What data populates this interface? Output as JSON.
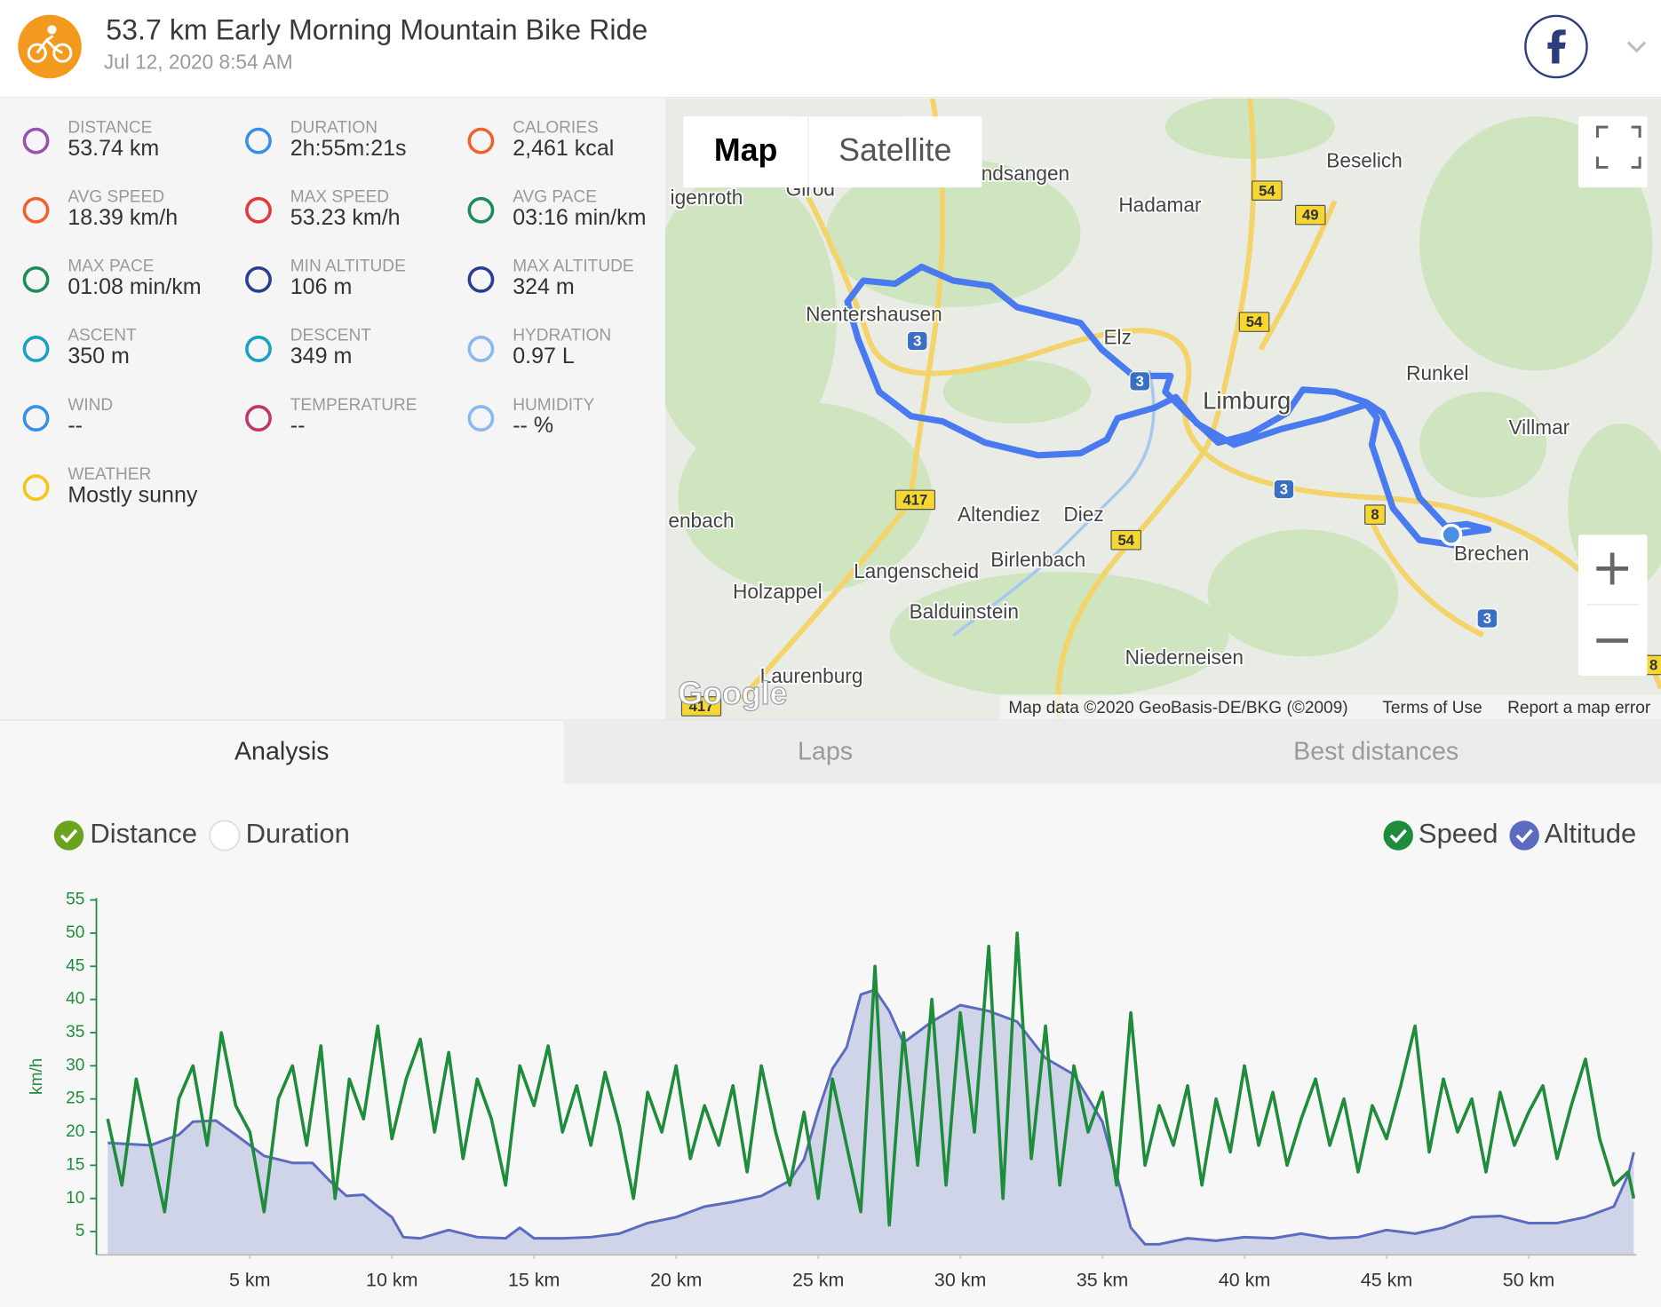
{
  "header": {
    "title": "53.7 km Early Morning Mountain Bike Ride",
    "date": "Jul 12, 2020 8:54 AM"
  },
  "stats": [
    {
      "label": "DISTANCE",
      "value": "53.74 km"
    },
    {
      "label": "DURATION",
      "value": "2h:55m:21s"
    },
    {
      "label": "CALORIES",
      "value": "2,461 kcal"
    },
    {
      "label": "AVG SPEED",
      "value": "18.39 km/h"
    },
    {
      "label": "MAX SPEED",
      "value": "53.23 km/h"
    },
    {
      "label": "AVG PACE",
      "value": "03:16 min/km"
    },
    {
      "label": "MAX PACE",
      "value": "01:08 min/km"
    },
    {
      "label": "MIN ALTITUDE",
      "value": "106 m"
    },
    {
      "label": "MAX ALTITUDE",
      "value": "324 m"
    },
    {
      "label": "ASCENT",
      "value": "350 m"
    },
    {
      "label": "DESCENT",
      "value": "349 m"
    },
    {
      "label": "HYDRATION",
      "value": "0.97 L"
    },
    {
      "label": "WIND",
      "value": "--"
    },
    {
      "label": "TEMPERATURE",
      "value": "--"
    },
    {
      "label": "HUMIDITY",
      "value": "-- %"
    },
    {
      "label": "WEATHER",
      "value": "Mostly sunny"
    }
  ],
  "map": {
    "buttons": [
      "Map",
      "Satellite"
    ],
    "places": [
      "Beselich",
      "Hadamar",
      "ndsangen",
      "Girod",
      "igenroth",
      "Nentershausen",
      "Elz",
      "Limburg",
      "Runkel",
      "Villmar",
      "Brechen",
      "Altendiez",
      "Diez",
      "Birlenbach",
      "Langenscheid",
      "Balduinstein",
      "enbach",
      "Holzappel",
      "Niederneisen",
      "Laurenburg"
    ],
    "roads": [
      "3",
      "3",
      "3",
      "3",
      "54",
      "54",
      "54",
      "49",
      "417",
      "417",
      "8",
      "8"
    ],
    "logo": "Google",
    "attribution": [
      "Map data ©2020 GeoBasis-DE/BKG (©2009)",
      "Terms of Use",
      "Report a map error"
    ]
  },
  "tabs": [
    "Analysis",
    "Laps",
    "Best distances"
  ],
  "x_modes": [
    "Distance",
    "Duration"
  ],
  "chart_data": {
    "type": "line",
    "y_label": "km/h",
    "xlim": [
      -0.4,
      53.8
    ],
    "xticks": [
      {
        "value": 5,
        "label": "5 km"
      },
      {
        "value": 10,
        "label": "10 km"
      },
      {
        "value": 15,
        "label": "15 km"
      },
      {
        "value": 20,
        "label": "20 km"
      },
      {
        "value": 25,
        "label": "25 km"
      },
      {
        "value": 30,
        "label": "30 km"
      },
      {
        "value": 35,
        "label": "35 km"
      },
      {
        "value": 40,
        "label": "40 km"
      },
      {
        "value": 45,
        "label": "45 km"
      },
      {
        "value": 50,
        "label": "50 km"
      }
    ],
    "ylim": [
      1.5,
      55.3
    ],
    "yticks": [
      5,
      10,
      15,
      20,
      25,
      30,
      35,
      40,
      45,
      50,
      55
    ],
    "y2lim": [
      97,
      400
    ],
    "grid": false,
    "series": [
      {
        "name": "Speed",
        "color": "#1e8c3a",
        "x": [
          0,
          0.5,
          1,
          1.5,
          2,
          2.5,
          3,
          3.5,
          4,
          4.5,
          5,
          5.5,
          6,
          6.5,
          7,
          7.5,
          8,
          8.5,
          9,
          9.5,
          10,
          10.5,
          11,
          11.5,
          12,
          12.5,
          13,
          13.5,
          14,
          14.5,
          15,
          15.5,
          16,
          16.5,
          17,
          17.5,
          18,
          18.5,
          19,
          19.5,
          20,
          20.5,
          21,
          21.5,
          22,
          22.5,
          23,
          23.5,
          24,
          24.5,
          25,
          25.5,
          26,
          26.5,
          27,
          27.5,
          28,
          28.5,
          29,
          29.5,
          30,
          30.5,
          31,
          31.5,
          32,
          32.5,
          33,
          33.5,
          34,
          34.5,
          35,
          35.5,
          36,
          36.5,
          37,
          37.5,
          38,
          38.5,
          39,
          39.5,
          40,
          40.5,
          41,
          41.5,
          42,
          42.5,
          43,
          43.5,
          44,
          44.5,
          45,
          45.5,
          46,
          46.5,
          47,
          47.5,
          48,
          48.5,
          49,
          49.5,
          50,
          50.5,
          51,
          51.5,
          52,
          52.5,
          53,
          53.5,
          53.7
        ],
        "values": [
          22,
          12,
          28,
          18,
          8,
          25,
          30,
          18,
          35,
          24,
          20,
          8,
          25,
          30,
          18,
          33,
          10,
          28,
          22,
          36,
          19,
          28,
          34,
          20,
          32,
          16,
          28,
          22,
          12,
          30,
          24,
          33,
          20,
          27,
          18,
          29,
          21,
          10,
          26,
          20,
          30,
          16,
          24,
          18,
          27,
          14,
          30,
          20,
          12,
          23,
          10,
          28,
          18,
          8,
          45,
          6,
          35,
          15,
          40,
          12,
          38,
          20,
          48,
          10,
          50,
          16,
          36,
          12,
          30,
          20,
          26,
          12,
          38,
          15,
          24,
          18,
          27,
          12,
          25,
          17,
          30,
          18,
          26,
          15,
          22,
          28,
          18,
          25,
          14,
          24,
          19,
          27,
          36,
          17,
          28,
          20,
          25,
          14,
          26,
          18,
          23,
          27,
          16,
          24,
          31,
          19,
          12,
          14,
          10
        ]
      },
      {
        "name": "Altitude",
        "color": "#5b6bbf",
        "axis": "y2",
        "x": [
          0,
          1.5,
          2.5,
          3,
          3.8,
          4.5,
          5.5,
          6.5,
          7.2,
          7.8,
          8.4,
          9,
          9.5,
          10,
          10.4,
          11,
          12,
          13,
          14,
          14.5,
          15,
          16,
          17,
          18,
          19,
          20,
          21,
          22,
          23,
          24,
          24.5,
          25,
          25.5,
          26,
          26.5,
          27,
          27.5,
          28,
          28.5,
          29,
          30,
          31,
          32,
          33,
          34,
          35,
          35.5,
          36,
          36.5,
          37,
          38,
          39,
          40,
          41,
          42,
          43,
          44,
          45,
          46,
          47,
          48,
          49,
          50,
          51,
          52,
          53,
          53.5,
          53.7
        ],
        "values": [
          192,
          190,
          199,
          210,
          211,
          199,
          181,
          175,
          175,
          160,
          147,
          148,
          138,
          129,
          112,
          111,
          118,
          112,
          111,
          120,
          111,
          111,
          112,
          115,
          124,
          129,
          138,
          142,
          147,
          160,
          178,
          219,
          255,
          273,
          318,
          322,
          304,
          277,
          286,
          295,
          309,
          304,
          295,
          264,
          250,
          210,
          165,
          120,
          106,
          106,
          111,
          109,
          112,
          111,
          115,
          111,
          112,
          118,
          115,
          120,
          129,
          130,
          124,
          124,
          129,
          138,
          165,
          184
        ]
      }
    ]
  }
}
